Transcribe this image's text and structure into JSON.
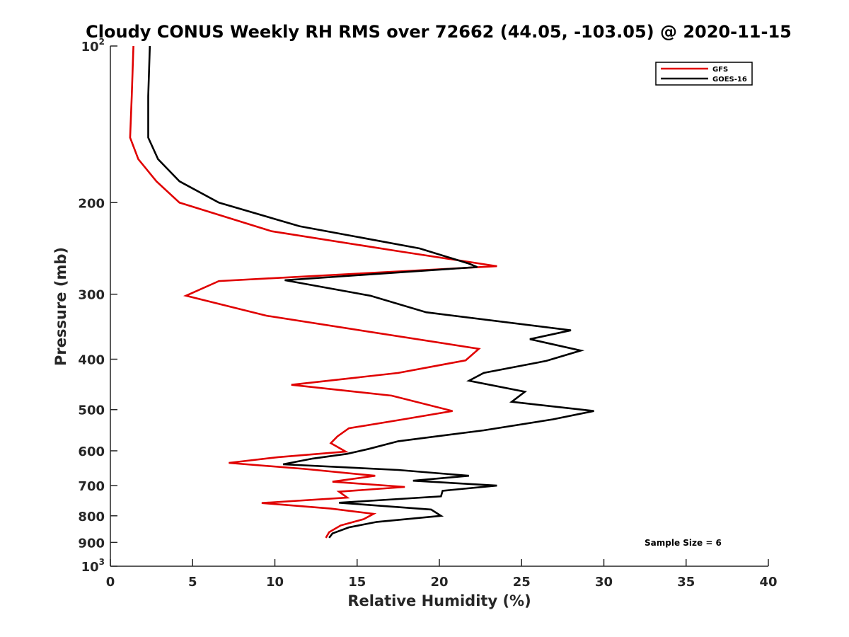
{
  "chart_data": {
    "type": "line",
    "title": "Cloudy CONUS Weekly RH RMS over 72662 (44.05, -103.05) @ 2020-11-15",
    "xlabel": "Relative Humidity (%)",
    "ylabel": "Pressure (mb)",
    "xlim": [
      0,
      40
    ],
    "ylim": [
      100,
      1000
    ],
    "y_scale": "log",
    "y_inverted": true,
    "grid": false,
    "legend_position": "top-right",
    "x_ticks": [
      {
        "value": 0,
        "label": "0"
      },
      {
        "value": 5,
        "label": "5"
      },
      {
        "value": 10,
        "label": "10"
      },
      {
        "value": 15,
        "label": "15"
      },
      {
        "value": 20,
        "label": "20"
      },
      {
        "value": 25,
        "label": "25"
      },
      {
        "value": 30,
        "label": "30"
      },
      {
        "value": 35,
        "label": "35"
      },
      {
        "value": 40,
        "label": "40"
      }
    ],
    "y_ticks": [
      {
        "value": 100,
        "label": "10",
        "sup": "2"
      },
      {
        "value": 200,
        "label": "200",
        "sup": ""
      },
      {
        "value": 300,
        "label": "300",
        "sup": ""
      },
      {
        "value": 400,
        "label": "400",
        "sup": ""
      },
      {
        "value": 500,
        "label": "500",
        "sup": ""
      },
      {
        "value": 600,
        "label": "600",
        "sup": ""
      },
      {
        "value": 700,
        "label": "700",
        "sup": ""
      },
      {
        "value": 800,
        "label": "800",
        "sup": ""
      },
      {
        "value": 900,
        "label": "900",
        "sup": ""
      },
      {
        "value": 1000,
        "label": "10",
        "sup": "3"
      }
    ],
    "annotation": "Sample Size = 6",
    "series": [
      {
        "name": "GFS",
        "color": "#e00000",
        "points": [
          [
            1.4,
            100
          ],
          [
            1.3,
            125
          ],
          [
            1.2,
            150
          ],
          [
            1.7,
            165
          ],
          [
            2.8,
            182
          ],
          [
            4.2,
            200
          ],
          [
            9.8,
            227
          ],
          [
            17.5,
            248
          ],
          [
            23.5,
            265
          ],
          [
            6.6,
            283
          ],
          [
            4.6,
            302
          ],
          [
            9.5,
            330
          ],
          [
            22.4,
            382
          ],
          [
            21.6,
            402
          ],
          [
            17.5,
            425
          ],
          [
            11.0,
            448
          ],
          [
            17.1,
            470
          ],
          [
            20.8,
            503
          ],
          [
            17.8,
            522
          ],
          [
            14.5,
            543
          ],
          [
            13.8,
            563
          ],
          [
            13.4,
            580
          ],
          [
            14.3,
            602
          ],
          [
            10.2,
            617
          ],
          [
            7.2,
            633
          ],
          [
            11.8,
            650
          ],
          [
            16.1,
            670
          ],
          [
            13.5,
            688
          ],
          [
            17.9,
            704
          ],
          [
            13.9,
            719
          ],
          [
            14.4,
            738
          ],
          [
            9.2,
            756
          ],
          [
            13.4,
            775
          ],
          [
            16.0,
            793
          ],
          [
            15.4,
            812
          ],
          [
            14.0,
            835
          ],
          [
            13.3,
            860
          ],
          [
            13.1,
            882
          ]
        ]
      },
      {
        "name": "GOES-16",
        "color": "#000000",
        "points": [
          [
            2.4,
            100
          ],
          [
            2.3,
            125
          ],
          [
            2.3,
            150
          ],
          [
            2.9,
            165
          ],
          [
            4.2,
            182
          ],
          [
            6.6,
            200
          ],
          [
            11.5,
            222
          ],
          [
            18.8,
            245
          ],
          [
            21.8,
            262
          ],
          [
            22.3,
            266
          ],
          [
            10.6,
            282
          ],
          [
            15.8,
            302
          ],
          [
            19.2,
            325
          ],
          [
            28.0,
            352
          ],
          [
            25.5,
            366
          ],
          [
            28.6,
            385
          ],
          [
            26.5,
            403
          ],
          [
            22.7,
            425
          ],
          [
            21.8,
            440
          ],
          [
            25.2,
            462
          ],
          [
            24.4,
            483
          ],
          [
            29.4,
            503
          ],
          [
            26.9,
            522
          ],
          [
            22.7,
            548
          ],
          [
            17.5,
            575
          ],
          [
            15.7,
            595
          ],
          [
            14.4,
            608
          ],
          [
            12.3,
            621
          ],
          [
            10.5,
            637
          ],
          [
            17.5,
            653
          ],
          [
            21.8,
            670
          ],
          [
            18.4,
            685
          ],
          [
            23.5,
            700
          ],
          [
            20.2,
            716
          ],
          [
            20.1,
            734
          ],
          [
            13.9,
            755
          ],
          [
            19.5,
            778
          ],
          [
            20.1,
            800
          ],
          [
            16.2,
            822
          ],
          [
            14.5,
            842
          ],
          [
            13.5,
            865
          ],
          [
            13.3,
            882
          ]
        ]
      }
    ]
  }
}
